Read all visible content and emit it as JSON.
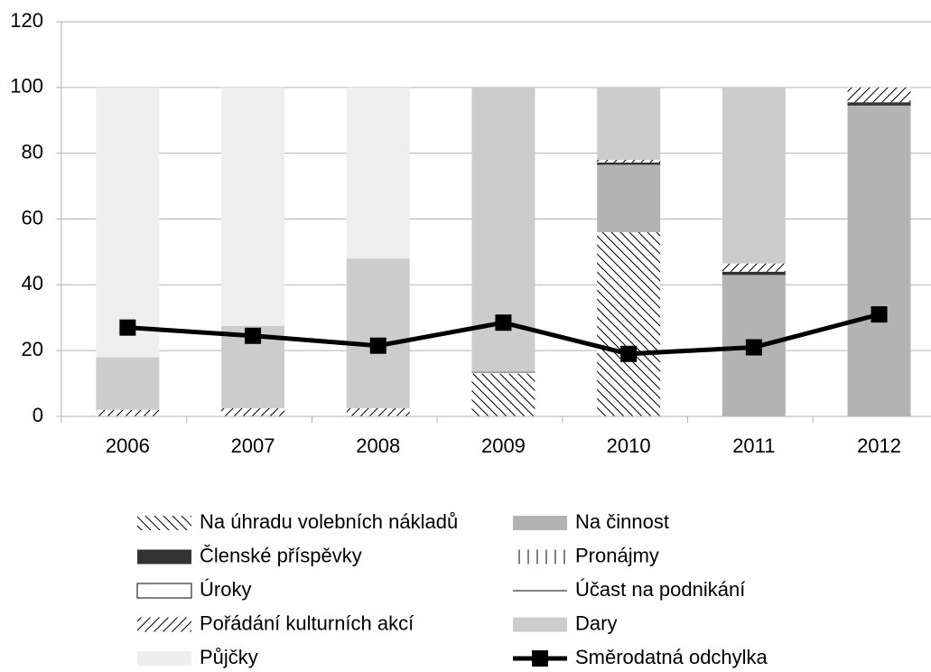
{
  "chart_data": {
    "type": "bar",
    "stacked": true,
    "categories": [
      "2006",
      "2007",
      "2008",
      "2009",
      "2010",
      "2011",
      "2012"
    ],
    "series": [
      {
        "name": "Na úhradu volebních nákladů",
        "color": "#000000",
        "pattern": "backslash",
        "values": [
          0,
          0,
          0,
          13,
          56,
          0,
          0
        ]
      },
      {
        "name": "Na činnost",
        "color": "#b3b3b3",
        "pattern": "solid",
        "values": [
          0,
          0,
          0,
          0,
          20.5,
          43,
          94.5
        ]
      },
      {
        "name": "Členské příspěvky",
        "color": "#333333",
        "pattern": "solid",
        "values": [
          0,
          0,
          0,
          0,
          0.7,
          1,
          1
        ]
      },
      {
        "name": "Pronájmy",
        "color": "#000000",
        "pattern": "vertical",
        "values": [
          0,
          0,
          0,
          0,
          0,
          0,
          0
        ]
      },
      {
        "name": "Úroky",
        "color": "#ffffff",
        "pattern": "outline",
        "values": [
          0,
          0,
          0,
          0,
          0,
          0,
          0
        ]
      },
      {
        "name": "Účast na podnikání",
        "color": "#000000",
        "pattern": "line",
        "values": [
          0,
          0,
          0,
          0.5,
          0,
          0,
          0
        ]
      },
      {
        "name": "Pořádání kulturních akcí",
        "color": "#000000",
        "pattern": "slash",
        "values": [
          2,
          2.5,
          2.5,
          0,
          0.8,
          2.5,
          4.5
        ]
      },
      {
        "name": "Dary",
        "color": "#cccccc",
        "pattern": "solid",
        "values": [
          16,
          25,
          45.5,
          86.5,
          22,
          53.5,
          0
        ]
      },
      {
        "name": "Půjčky",
        "color": "#eeeeee",
        "pattern": "solid",
        "values": [
          82,
          72.5,
          52,
          0,
          0,
          0,
          0
        ]
      }
    ],
    "line_series": {
      "name": "Směrodatná odchylka",
      "color": "#000000",
      "values": [
        27,
        24.5,
        21.5,
        28.5,
        19,
        21,
        31
      ]
    },
    "ylim": [
      0,
      120
    ],
    "yticks": [
      0,
      20,
      40,
      60,
      80,
      100,
      120
    ],
    "grid": true
  }
}
